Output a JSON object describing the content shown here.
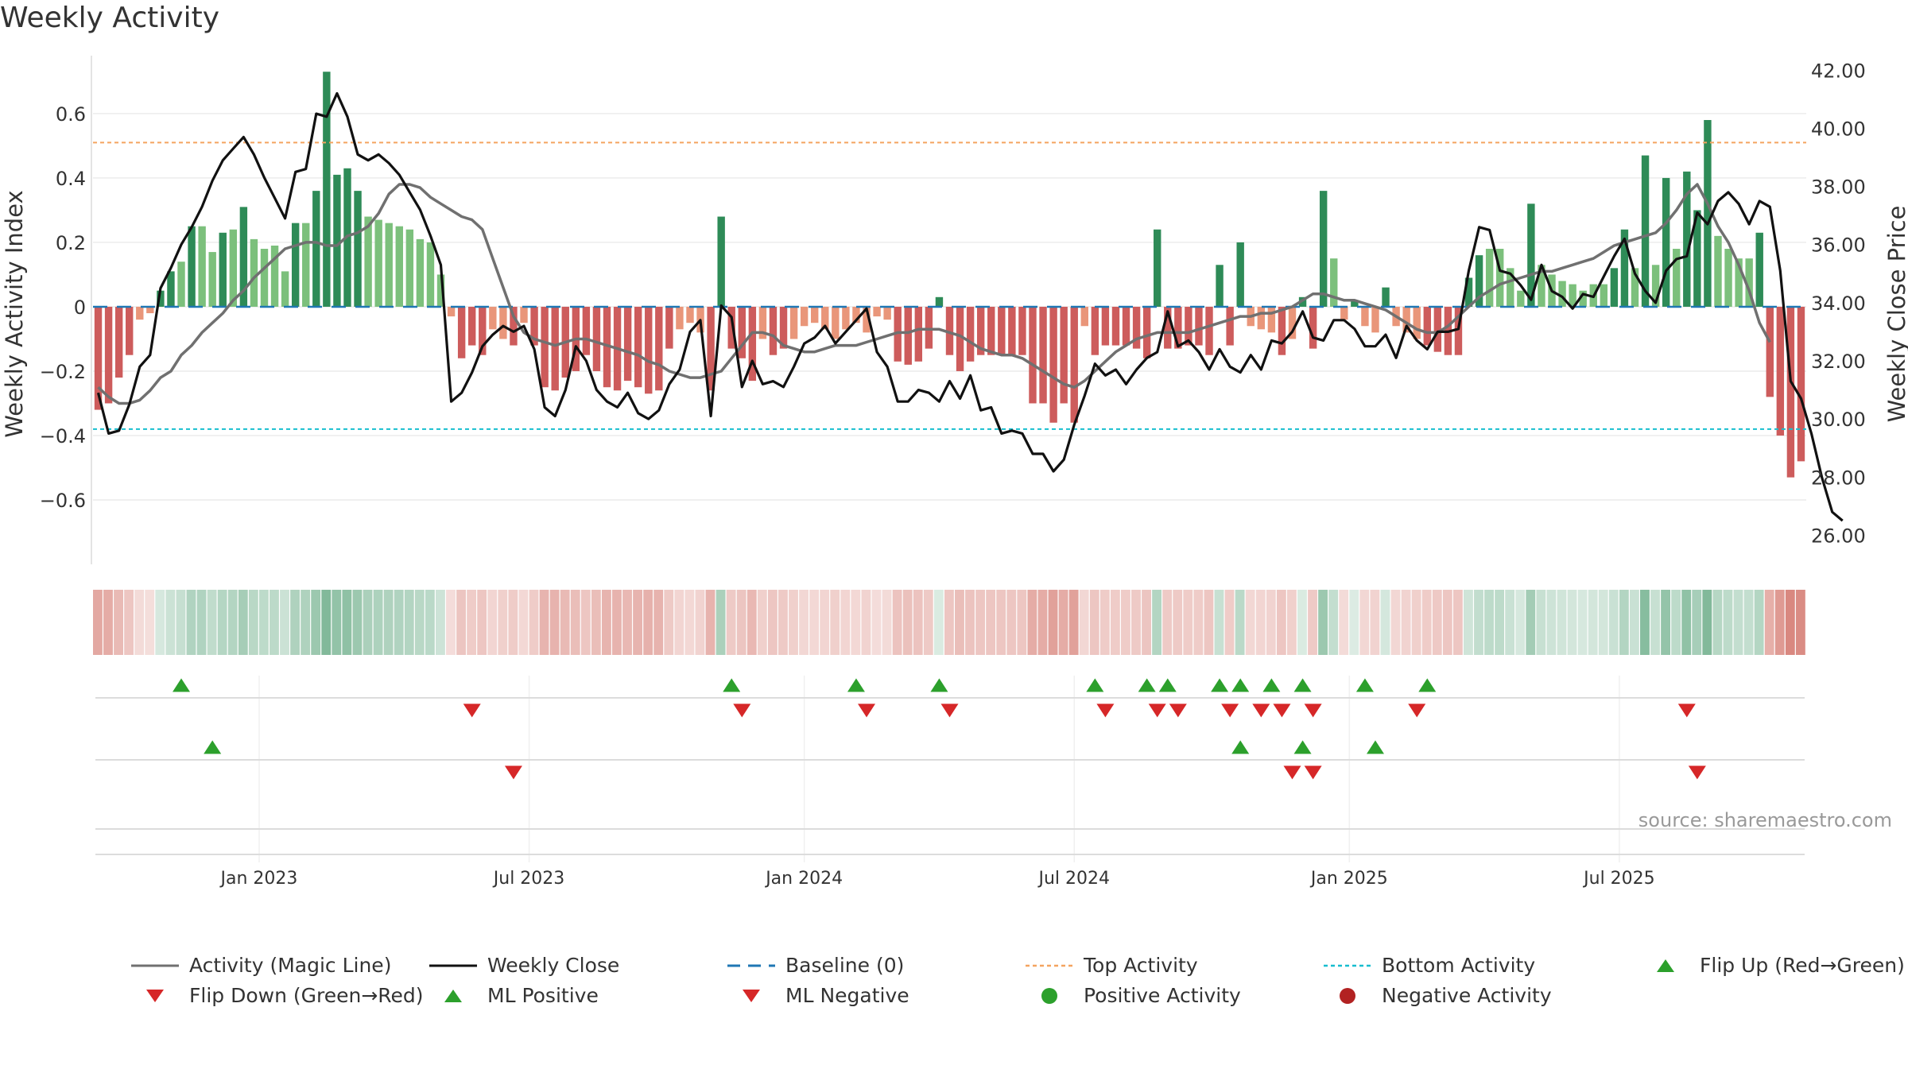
{
  "title": "Weekly Activity",
  "source": "source: sharemaestro.com",
  "colors": {
    "magic_line": "#707070",
    "close": "#111111",
    "baseline": "#1f77b4",
    "top": "#f4a460",
    "bottom": "#17becf",
    "pos_strong": "#2e8b57",
    "pos_light": "#7cc07c",
    "neg_strong": "#cd5c5c",
    "neg_light": "#e9967a",
    "up_marker": "#2ca02c",
    "down_marker": "#d62728",
    "neg_dot": "#b22222"
  },
  "chart_data": {
    "type": "bar",
    "title": "Weekly Activity",
    "ylabel": "Weekly Activity Index",
    "y2label": "Weekly Close Price",
    "ylim": [
      -0.8,
      0.78
    ],
    "y2lim": [
      25.0,
      42.5
    ],
    "yticks": [
      -0.6,
      -0.4,
      -0.2,
      0,
      0.2,
      0.4,
      0.6
    ],
    "ytick_labels": [
      "−0.6",
      "−0.4",
      "−0.2",
      "0",
      "0.2",
      "0.4",
      "0.6"
    ],
    "y2ticks": [
      26,
      28,
      30,
      32,
      34,
      36,
      38,
      40,
      42
    ],
    "y2tick_labels": [
      "26.00",
      "28.00",
      "30.00",
      "32.00",
      "34.00",
      "36.00",
      "38.00",
      "40.00",
      "42.00"
    ],
    "x_ticks": [
      {
        "label": "Jan 2023",
        "week": 16
      },
      {
        "label": "Jul 2023",
        "week": 42
      },
      {
        "label": "Jan 2024",
        "week": 68.5
      },
      {
        "label": "Jul 2024",
        "week": 94.5
      },
      {
        "label": "Jan 2025",
        "week": 121
      },
      {
        "label": "Jul 2025",
        "week": 147
      }
    ],
    "top_activity": 0.51,
    "bottom_activity": -0.38,
    "baseline": 0,
    "series": [
      {
        "name": "Activity",
        "values": [
          -0.32,
          -0.3,
          -0.22,
          -0.15,
          -0.04,
          -0.02,
          0.05,
          0.11,
          0.14,
          0.25,
          0.25,
          0.17,
          0.23,
          0.24,
          0.31,
          0.21,
          0.18,
          0.19,
          0.11,
          0.26,
          0.26,
          0.36,
          0.73,
          0.41,
          0.43,
          0.36,
          0.28,
          0.27,
          0.26,
          0.25,
          0.24,
          0.21,
          0.2,
          0.1,
          -0.03,
          -0.16,
          -0.12,
          -0.15,
          -0.07,
          -0.1,
          -0.12,
          -0.05,
          -0.12,
          -0.25,
          -0.26,
          -0.22,
          -0.2,
          -0.15,
          -0.2,
          -0.25,
          -0.26,
          -0.23,
          -0.25,
          -0.27,
          -0.26,
          -0.13,
          -0.07,
          -0.05,
          -0.08,
          -0.26,
          0.28,
          -0.13,
          -0.16,
          -0.23,
          -0.1,
          -0.15,
          -0.13,
          -0.1,
          -0.06,
          -0.05,
          -0.07,
          -0.1,
          -0.07,
          -0.05,
          -0.08,
          -0.03,
          -0.04,
          -0.17,
          -0.18,
          -0.17,
          -0.13,
          0.03,
          -0.15,
          -0.2,
          -0.17,
          -0.15,
          -0.15,
          -0.15,
          -0.15,
          -0.15,
          -0.3,
          -0.3,
          -0.36,
          -0.3,
          -0.36,
          -0.06,
          -0.15,
          -0.12,
          -0.12,
          -0.12,
          -0.13,
          -0.16,
          0.24,
          -0.13,
          -0.13,
          -0.12,
          -0.12,
          -0.15,
          0.13,
          -0.12,
          0.2,
          -0.06,
          -0.07,
          -0.08,
          -0.15,
          -0.1,
          0.03,
          -0.13,
          0.36,
          0.15,
          -0.04,
          0.02,
          -0.06,
          -0.08,
          0.06,
          -0.06,
          -0.08,
          -0.1,
          -0.12,
          -0.14,
          -0.15,
          -0.15,
          0.09,
          0.16,
          0.18,
          0.18,
          0.12,
          0.05,
          0.32,
          0.13,
          0.1,
          0.08,
          0.07,
          0.05,
          0.07,
          0.07,
          0.12,
          0.24,
          0.12,
          0.47,
          0.13,
          0.4,
          0.18,
          0.42,
          0.3,
          0.58,
          0.22,
          0.18,
          0.15,
          0.15,
          0.23,
          -0.28,
          -0.4,
          -0.53,
          -0.48
        ]
      },
      {
        "name": "Activity (Magic Line)",
        "values": [
          -0.25,
          -0.28,
          -0.3,
          -0.3,
          -0.29,
          -0.26,
          -0.22,
          -0.2,
          -0.15,
          -0.12,
          -0.08,
          -0.05,
          -0.02,
          0.02,
          0.05,
          0.09,
          0.12,
          0.15,
          0.18,
          0.19,
          0.2,
          0.2,
          0.19,
          0.19,
          0.22,
          0.23,
          0.25,
          0.29,
          0.35,
          0.38,
          0.38,
          0.37,
          0.34,
          0.32,
          0.3,
          0.28,
          0.27,
          0.24,
          0.15,
          0.06,
          -0.03,
          -0.08,
          -0.1,
          -0.11,
          -0.12,
          -0.11,
          -0.1,
          -0.1,
          -0.11,
          -0.12,
          -0.13,
          -0.14,
          -0.15,
          -0.17,
          -0.18,
          -0.2,
          -0.21,
          -0.22,
          -0.22,
          -0.21,
          -0.2,
          -0.16,
          -0.12,
          -0.08,
          -0.08,
          -0.09,
          -0.12,
          -0.13,
          -0.14,
          -0.14,
          -0.13,
          -0.12,
          -0.12,
          -0.12,
          -0.11,
          -0.1,
          -0.09,
          -0.08,
          -0.08,
          -0.07,
          -0.07,
          -0.07,
          -0.08,
          -0.09,
          -0.11,
          -0.13,
          -0.14,
          -0.15,
          -0.15,
          -0.16,
          -0.18,
          -0.2,
          -0.22,
          -0.24,
          -0.25,
          -0.23,
          -0.2,
          -0.17,
          -0.14,
          -0.12,
          -0.1,
          -0.09,
          -0.08,
          -0.08,
          -0.08,
          -0.08,
          -0.07,
          -0.06,
          -0.05,
          -0.04,
          -0.03,
          -0.03,
          -0.02,
          -0.02,
          -0.01,
          0,
          0.02,
          0.04,
          0.04,
          0.03,
          0.02,
          0.02,
          0.01,
          0,
          -0.01,
          -0.03,
          -0.05,
          -0.07,
          -0.08,
          -0.08,
          -0.06,
          -0.03,
          0,
          0.03,
          0.05,
          0.07,
          0.08,
          0.09,
          0.1,
          0.11,
          0.11,
          0.12,
          0.13,
          0.14,
          0.15,
          0.17,
          0.19,
          0.2,
          0.21,
          0.22,
          0.23,
          0.26,
          0.3,
          0.35,
          0.38,
          0.32,
          0.25,
          0.2,
          0.13,
          0.05,
          -0.05,
          -0.11
        ]
      },
      {
        "name": "Weekly Close",
        "values": [
          30.9,
          29.5,
          29.6,
          30.5,
          31.8,
          32.2,
          34.5,
          35.2,
          36.0,
          36.6,
          37.3,
          38.2,
          38.9,
          39.3,
          39.7,
          39.1,
          38.3,
          37.6,
          36.9,
          38.5,
          38.6,
          40.5,
          40.4,
          41.2,
          40.4,
          39.1,
          38.9,
          39.1,
          38.8,
          38.4,
          37.8,
          37.2,
          36.3,
          35.3,
          30.6,
          30.9,
          31.6,
          32.5,
          32.9,
          33.2,
          33.0,
          33.2,
          32.4,
          30.4,
          30.1,
          31.0,
          32.5,
          32.0,
          31.0,
          30.6,
          30.4,
          30.9,
          30.2,
          30.0,
          30.3,
          31.2,
          31.7,
          33.0,
          33.4,
          30.1,
          33.9,
          33.5,
          31.1,
          32.0,
          31.2,
          31.3,
          31.1,
          31.8,
          32.6,
          32.8,
          33.2,
          32.6,
          33.0,
          33.4,
          33.8,
          32.3,
          31.8,
          30.6,
          30.6,
          31.0,
          30.9,
          30.6,
          31.3,
          30.7,
          31.5,
          30.3,
          30.4,
          29.5,
          29.6,
          29.5,
          28.8,
          28.8,
          28.2,
          28.6,
          29.8,
          30.8,
          31.9,
          31.5,
          31.7,
          31.2,
          31.7,
          32.1,
          32.3,
          33.7,
          32.5,
          32.7,
          32.3,
          31.7,
          32.4,
          31.8,
          31.6,
          32.2,
          31.7,
          32.7,
          32.6,
          33.0,
          33.7,
          32.8,
          32.7,
          33.4,
          33.4,
          33.1,
          32.5,
          32.5,
          32.9,
          32.1,
          33.2,
          32.7,
          32.4,
          33.0,
          33.0,
          33.1,
          35.1,
          36.6,
          36.5,
          35.1,
          35.0,
          34.6,
          34.1,
          35.3,
          34.4,
          34.2,
          33.8,
          34.3,
          34.2,
          34.9,
          35.6,
          36.2,
          35.0,
          34.4,
          34.0,
          35.1,
          35.5,
          35.6,
          37.1,
          36.7,
          37.5,
          37.8,
          37.4,
          36.7,
          37.5,
          37.3,
          35.1,
          31.3,
          30.7,
          29.5,
          28.0,
          26.8,
          26.5
        ]
      }
    ],
    "activity_strip": [
      "neg",
      "neg",
      "neg",
      "neg",
      "neg",
      "neg",
      "pos",
      "pos",
      "pos",
      "pos",
      "pos",
      "pos",
      "pos",
      "pos",
      "pos",
      "pos",
      "pos",
      "pos",
      "pos",
      "pos",
      "pos",
      "pos",
      "pos",
      "pos",
      "pos",
      "pos",
      "pos",
      "pos",
      "pos",
      "pos",
      "pos",
      "pos",
      "pos",
      "pos",
      "neg",
      "neg",
      "neg",
      "neg",
      "neg",
      "neg",
      "neg",
      "neg",
      "neg",
      "neg",
      "neg",
      "neg",
      "neg",
      "neg",
      "neg",
      "neg",
      "neg",
      "neg",
      "neg",
      "neg",
      "neg",
      "neg",
      "neg",
      "neg",
      "neg",
      "neg",
      "pos",
      "neg",
      "neg",
      "neg",
      "neg",
      "neg",
      "neg",
      "neg",
      "neg",
      "neg",
      "neg",
      "neg",
      "neg",
      "neg",
      "neg",
      "neg",
      "neg",
      "neg",
      "neg",
      "neg",
      "neg",
      "pos",
      "neg",
      "neg",
      "neg",
      "neg",
      "neg",
      "neg",
      "neg",
      "neg",
      "neg",
      "neg",
      "neg",
      "neg",
      "neg",
      "neg",
      "neg",
      "neg",
      "neg",
      "neg",
      "neg",
      "neg",
      "pos",
      "neg",
      "neg",
      "neg",
      "neg",
      "neg",
      "pos",
      "neg",
      "pos",
      "neg",
      "neg",
      "neg",
      "neg",
      "neg",
      "pos",
      "neg",
      "pos",
      "pos",
      "neg",
      "pos",
      "neg",
      "neg",
      "pos",
      "neg",
      "neg",
      "neg",
      "neg",
      "neg",
      "neg",
      "neg",
      "pos",
      "pos",
      "pos",
      "pos",
      "pos",
      "pos",
      "pos",
      "pos",
      "pos",
      "pos",
      "pos",
      "pos",
      "pos",
      "pos",
      "pos",
      "pos",
      "pos",
      "pos",
      "pos",
      "pos",
      "pos",
      "pos",
      "pos",
      "pos",
      "pos",
      "pos",
      "pos",
      "pos",
      "pos",
      "neg",
      "neg",
      "neg",
      "neg"
    ],
    "flip_up_weeks": [
      8,
      61,
      73,
      81,
      96,
      101,
      103,
      108,
      110,
      113,
      116,
      122,
      128
    ],
    "flip_down_weeks": [
      36,
      62,
      74,
      82,
      97,
      102,
      104,
      109,
      112,
      114,
      117,
      127,
      153
    ],
    "ml_positive_weeks": [
      11,
      110,
      116,
      123
    ],
    "ml_negative_weeks": [
      40,
      115,
      117,
      154
    ],
    "legend": [
      {
        "label": "Activity (Magic Line)",
        "symbol": "line-gray"
      },
      {
        "label": "Weekly Close",
        "symbol": "line-black"
      },
      {
        "label": "Baseline (0)",
        "symbol": "dash-blue"
      },
      {
        "label": "Top Activity",
        "symbol": "dot-orange"
      },
      {
        "label": "Bottom Activity",
        "symbol": "dot-cyan"
      },
      {
        "label": "Flip Up (Red→Green)",
        "symbol": "tri-up"
      },
      {
        "label": "Flip Down (Green→Red)",
        "symbol": "tri-down"
      },
      {
        "label": "ML Positive",
        "symbol": "tri-up"
      },
      {
        "label": "ML Negative",
        "symbol": "tri-down"
      },
      {
        "label": "Positive Activity",
        "symbol": "circle-green"
      },
      {
        "label": "Negative Activity",
        "symbol": "circle-red"
      }
    ]
  }
}
